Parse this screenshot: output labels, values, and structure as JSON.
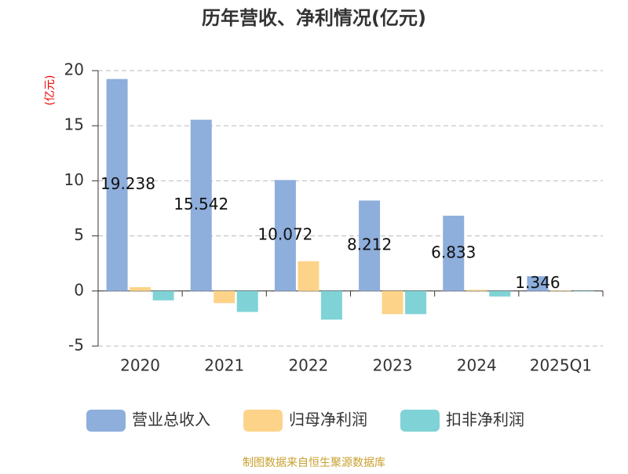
{
  "chart_data": {
    "type": "bar",
    "title": "历年营收、净利情况(亿元)",
    "y_label": "(亿元)",
    "categories": [
      "2020",
      "2021",
      "2022",
      "2023",
      "2024",
      "2025Q1"
    ],
    "series": [
      {
        "name": "营业总收入",
        "color": "#8eaedc",
        "values": [
          19.238,
          15.542,
          10.072,
          8.212,
          6.833,
          1.346
        ],
        "show_labels": true
      },
      {
        "name": "归母净利润",
        "color": "#fdd38a",
        "values": [
          0.35,
          -1.1,
          2.7,
          -2.1,
          0.1,
          0.05
        ]
      },
      {
        "name": "扣非净利润",
        "color": "#7fd3d6",
        "values": [
          -0.85,
          -1.9,
          -2.6,
          -2.1,
          -0.5,
          -0.05
        ]
      }
    ],
    "ylim": [
      -5,
      20
    ],
    "yticks": [
      -5,
      0,
      5,
      10,
      15,
      20
    ],
    "grid": true,
    "source": "制图数据来自恒生聚源数据库"
  }
}
